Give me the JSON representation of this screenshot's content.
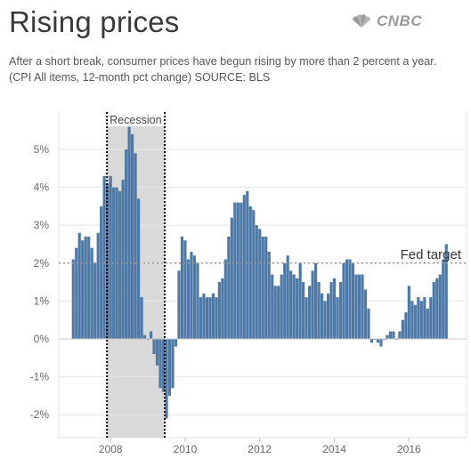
{
  "header": {
    "title": "Rising prices",
    "brand": "CNBC",
    "subtitle": "After a short break, consumer prices have begun rising by more than 2 percent a year. (CPI All items, 12-month pct change) SOURCE: BLS"
  },
  "colors": {
    "bar": "#4e79a7",
    "recession_fill": "#d9d9d9",
    "grid": "#e6e6e6",
    "target_line": "#999999",
    "logo": "#9a9a9a"
  },
  "chart_data": {
    "type": "bar",
    "title": "Rising prices",
    "xlabel": "",
    "ylabel": "",
    "ylim": [
      -2.5,
      6.0
    ],
    "y_ticks": [
      "5%",
      "4%",
      "3%",
      "2%",
      "1%",
      "0%",
      "-1%",
      "-2%"
    ],
    "y_tick_values": [
      5,
      4,
      3,
      2,
      1,
      0,
      -1,
      -2
    ],
    "x_ticks": [
      "2008",
      "2010",
      "2012",
      "2014",
      "2016"
    ],
    "x_tick_values": [
      2008,
      2010,
      2012,
      2014,
      2016
    ],
    "grid": "horizontal",
    "series": [
      {
        "start": "2007-01",
        "values": [
          2.1,
          2.4,
          2.8,
          2.6,
          2.7,
          2.7,
          2.4,
          2.0,
          2.8,
          3.5,
          4.3,
          4.1,
          4.3,
          4.0,
          4.0,
          3.9,
          4.2,
          5.0,
          5.6,
          5.4,
          4.9,
          3.7,
          1.1,
          0.1,
          0.0,
          0.2,
          -0.4,
          -0.7,
          -1.3,
          -1.4,
          -2.1,
          -1.5,
          -1.3,
          -0.2,
          1.8,
          2.7,
          2.6,
          2.1,
          2.3,
          2.2,
          2.0,
          1.1,
          1.2,
          1.1,
          1.1,
          1.2,
          1.1,
          1.5,
          1.6,
          2.1,
          2.7,
          3.2,
          3.6,
          3.6,
          3.6,
          3.8,
          3.9,
          3.5,
          3.4,
          3.0,
          2.9,
          2.7,
          2.7,
          2.3,
          1.7,
          1.4,
          1.4,
          1.7,
          2.0,
          2.2,
          1.8,
          1.7,
          1.6,
          2.0,
          1.5,
          1.1,
          1.4,
          1.8,
          2.0,
          1.5,
          1.2,
          1.0,
          1.2,
          1.5,
          1.6,
          1.1,
          1.5,
          2.0,
          2.1,
          2.1,
          2.0,
          1.7,
          1.7,
          1.7,
          1.3,
          0.8,
          -0.1,
          0.0,
          -0.1,
          -0.2,
          0.0,
          0.1,
          0.2,
          0.2,
          0.0,
          0.2,
          0.5,
          0.7,
          1.4,
          1.0,
          0.9,
          1.1,
          1.0,
          1.1,
          0.8,
          1.1,
          1.5,
          1.6,
          1.7,
          2.1,
          2.5
        ]
      }
    ],
    "reference_line": {
      "value": 2,
      "label": "Fed target"
    },
    "shaded_region": {
      "label": "Recession",
      "start": "2007-12",
      "end": "2009-06"
    }
  }
}
